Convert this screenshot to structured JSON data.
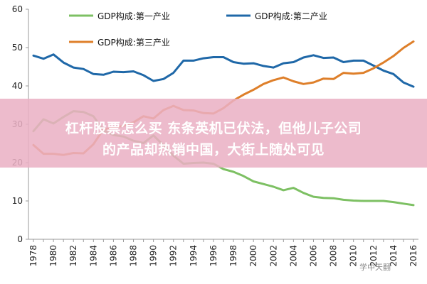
{
  "chart_data": {
    "type": "line",
    "x": [
      1978,
      1979,
      1980,
      1981,
      1982,
      1983,
      1984,
      1985,
      1986,
      1987,
      1988,
      1989,
      1990,
      1991,
      1992,
      1993,
      1994,
      1995,
      1996,
      1997,
      1998,
      1999,
      2000,
      2001,
      2002,
      2003,
      2004,
      2005,
      2006,
      2007,
      2008,
      2009,
      2010,
      2011,
      2012,
      2013,
      2014,
      2015,
      2016
    ],
    "xticks": [
      "1978",
      "1980",
      "1982",
      "1984",
      "1986",
      "1988",
      "1990",
      "1992",
      "1994",
      "1996",
      "1998",
      "2000",
      "2002",
      "2004",
      "2006",
      "2008",
      "2010",
      "2012",
      "2014",
      "2016"
    ],
    "yticks": [
      "0",
      "10",
      "20",
      "30",
      "40",
      "50",
      "60"
    ],
    "ylim": [
      0,
      60
    ],
    "series": [
      {
        "name": "GDP构成:第一产业",
        "color": "#7dc063",
        "values": [
          28.2,
          31.3,
          30.2,
          31.9,
          33.4,
          33.2,
          32.1,
          28.4,
          27.2,
          26.8,
          25.7,
          25.1,
          27.1,
          24.5,
          21.8,
          19.7,
          19.9,
          20.0,
          19.7,
          18.3,
          17.6,
          16.5,
          15.1,
          14.4,
          13.7,
          12.8,
          13.4,
          12.1,
          11.1,
          10.8,
          10.7,
          10.3,
          10.1,
          10.0,
          10.0,
          10.0,
          9.7,
          9.3,
          8.9
        ]
      },
      {
        "name": "GDP构成:第二产业",
        "color": "#1f68a8",
        "values": [
          47.9,
          47.1,
          48.2,
          46.1,
          44.8,
          44.4,
          43.1,
          42.9,
          43.7,
          43.6,
          43.8,
          42.8,
          41.3,
          41.8,
          43.4,
          46.6,
          46.6,
          47.2,
          47.5,
          47.5,
          46.2,
          45.8,
          45.9,
          45.2,
          44.8,
          45.9,
          46.2,
          47.4,
          48.0,
          47.3,
          47.4,
          46.2,
          46.6,
          46.6,
          45.3,
          44.0,
          43.1,
          40.9,
          39.8
        ]
      },
      {
        "name": "GDP构成:第三产业",
        "color": "#de7f2a",
        "values": [
          24.6,
          22.3,
          22.3,
          22.0,
          22.5,
          22.4,
          24.8,
          28.7,
          29.1,
          29.6,
          30.5,
          32.1,
          31.5,
          33.7,
          34.8,
          33.7,
          33.6,
          32.9,
          32.8,
          34.2,
          36.2,
          37.7,
          39.0,
          40.5,
          41.5,
          42.2,
          41.2,
          40.5,
          40.9,
          41.9,
          41.8,
          43.4,
          43.2,
          43.4,
          44.6,
          46.1,
          47.8,
          49.9,
          51.6
        ]
      }
    ]
  },
  "banner": {
    "line1": "杠杆股票怎么买 东条英机已伏法，但他儿子公司",
    "line2": "的产品却热销中国，大街上随处可见"
  },
  "watermark": "学中天翻"
}
